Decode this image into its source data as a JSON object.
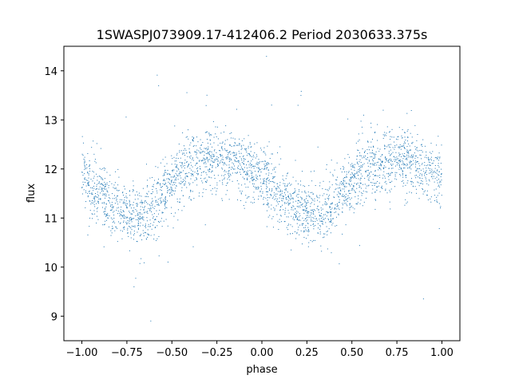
{
  "chart_data": {
    "type": "scatter",
    "title": "1SWASPJ073909.17-412406.2 Period 2030633.375s",
    "xlabel": "phase",
    "ylabel": "flux",
    "xlim": [
      -1.1,
      1.1
    ],
    "ylim": [
      8.5,
      14.5
    ],
    "xticks": [
      -1.0,
      -0.75,
      -0.5,
      -0.25,
      0.0,
      0.25,
      0.5,
      0.75,
      1.0
    ],
    "xtick_labels": [
      "−1.00",
      "−0.75",
      "−0.50",
      "−0.25",
      "0.00",
      "0.25",
      "0.50",
      "0.75",
      "1.00"
    ],
    "yticks": [
      9,
      10,
      11,
      12,
      13,
      14
    ],
    "ytick_labels": [
      "9",
      "10",
      "11",
      "12",
      "13",
      "14"
    ],
    "grid": false,
    "legend": "none",
    "marker_color": "#1f77b4",
    "phase_range": [
      -1.0,
      1.0
    ],
    "light_curve_profile": [
      {
        "phase": 0.0,
        "flux_median": 11.85,
        "flux_spread": 0.55
      },
      {
        "phase": 0.05,
        "flux_median": 11.7,
        "flux_spread": 0.6
      },
      {
        "phase": 0.1,
        "flux_median": 11.5,
        "flux_spread": 0.6
      },
      {
        "phase": 0.15,
        "flux_median": 11.35,
        "flux_spread": 0.6
      },
      {
        "phase": 0.2,
        "flux_median": 11.2,
        "flux_spread": 0.6
      },
      {
        "phase": 0.25,
        "flux_median": 11.1,
        "flux_spread": 0.55
      },
      {
        "phase": 0.3,
        "flux_median": 11.05,
        "flux_spread": 0.55
      },
      {
        "phase": 0.35,
        "flux_median": 11.1,
        "flux_spread": 0.55
      },
      {
        "phase": 0.4,
        "flux_median": 11.25,
        "flux_spread": 0.6
      },
      {
        "phase": 0.45,
        "flux_median": 11.5,
        "flux_spread": 0.6
      },
      {
        "phase": 0.5,
        "flux_median": 11.75,
        "flux_spread": 0.6
      },
      {
        "phase": 0.55,
        "flux_median": 11.95,
        "flux_spread": 0.6
      },
      {
        "phase": 0.6,
        "flux_median": 12.05,
        "flux_spread": 0.6
      },
      {
        "phase": 0.65,
        "flux_median": 12.1,
        "flux_spread": 0.6
      },
      {
        "phase": 0.7,
        "flux_median": 12.15,
        "flux_spread": 0.6
      },
      {
        "phase": 0.75,
        "flux_median": 12.2,
        "flux_spread": 0.55
      },
      {
        "phase": 0.8,
        "flux_median": 12.2,
        "flux_spread": 0.55
      },
      {
        "phase": 0.85,
        "flux_median": 12.1,
        "flux_spread": 0.55
      },
      {
        "phase": 0.9,
        "flux_median": 12.0,
        "flux_spread": 0.55
      },
      {
        "phase": 0.95,
        "flux_median": 11.95,
        "flux_spread": 0.55
      },
      {
        "phase": 1.0,
        "flux_median": 11.85,
        "flux_spread": 0.55
      }
    ],
    "approx_point_count": 3000
  }
}
